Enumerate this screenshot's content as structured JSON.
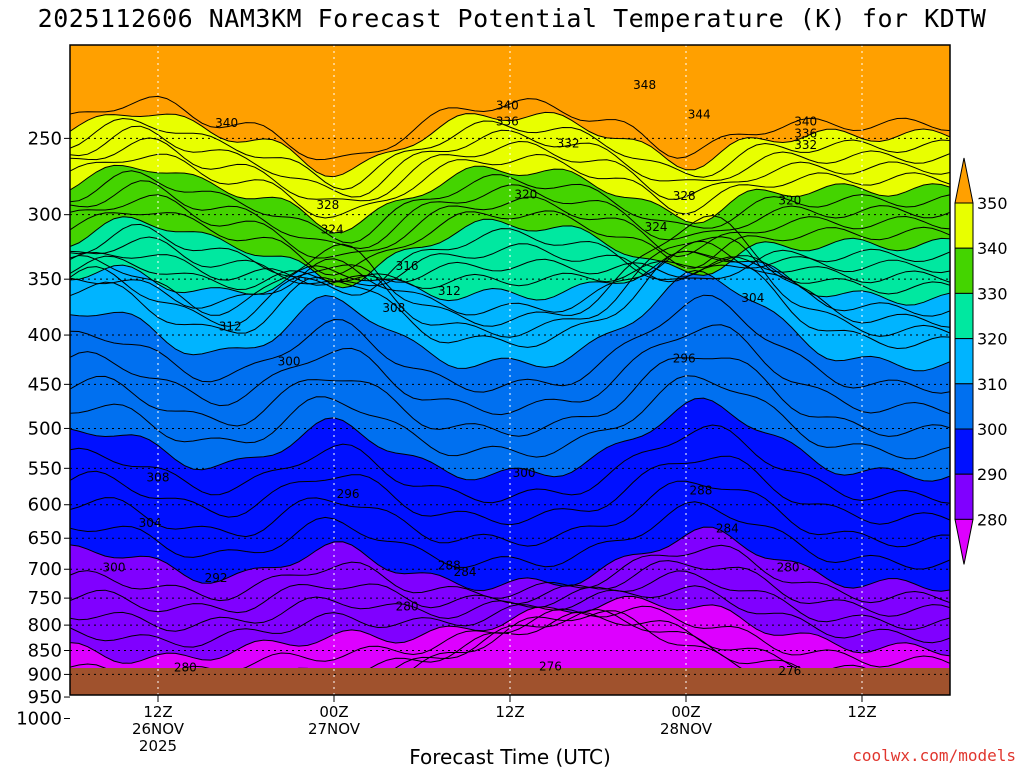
{
  "chart_data": {
    "type": "heatmap",
    "title": "2025112606 NAM3KM Forecast Potential Temperature (K) for KDTW",
    "xlabel": "Forecast Time (UTC)",
    "ylabel": "",
    "y_ticks": [
      "250",
      "300",
      "350",
      "400",
      "450",
      "500",
      "550",
      "600",
      "650",
      "700",
      "750",
      "800",
      "850",
      "900",
      "950",
      "1000"
    ],
    "y_scale": "log-pressure",
    "y_range": [
      1000,
      200
    ],
    "x_ticks": [
      {
        "label": "12Z",
        "date": "26NOV",
        "year": "2025"
      },
      {
        "label": "00Z",
        "date": "27NOV",
        "year": ""
      },
      {
        "label": "12Z",
        "date": "",
        "year": ""
      },
      {
        "label": "00Z",
        "date": "28NOV",
        "year": ""
      },
      {
        "label": "12Z",
        "date": "",
        "year": ""
      }
    ],
    "colorbar": {
      "levels": [
        "280",
        "290",
        "300",
        "310",
        "320",
        "330",
        "340",
        "350"
      ],
      "colors": [
        "#dd00ff",
        "#8000ff",
        "#0010ff",
        "#0070f0",
        "#00b4ff",
        "#00e8a0",
        "#44d400",
        "#e8ff00",
        "#ffa000"
      ]
    },
    "contour_labels": [
      {
        "text": "348",
        "p": 220,
        "t": 0.653
      },
      {
        "text": "340",
        "p": 231,
        "t": 0.497
      },
      {
        "text": "336",
        "p": 240,
        "t": 0.497
      },
      {
        "text": "344",
        "p": 236,
        "t": 0.715
      },
      {
        "text": "340",
        "p": 241,
        "t": 0.178
      },
      {
        "text": "340",
        "p": 240,
        "t": 0.836
      },
      {
        "text": "336",
        "p": 247,
        "t": 0.836
      },
      {
        "text": "332",
        "p": 253,
        "t": 0.566
      },
      {
        "text": "332",
        "p": 254,
        "t": 0.836
      },
      {
        "text": "320",
        "p": 286,
        "t": 0.518
      },
      {
        "text": "328",
        "p": 293,
        "t": 0.293
      },
      {
        "text": "328",
        "p": 287,
        "t": 0.698
      },
      {
        "text": "320",
        "p": 290,
        "t": 0.818
      },
      {
        "text": "324",
        "p": 311,
        "t": 0.298
      },
      {
        "text": "324",
        "p": 309,
        "t": 0.666
      },
      {
        "text": "316",
        "p": 339,
        "t": 0.383
      },
      {
        "text": "312",
        "p": 360,
        "t": 0.431
      },
      {
        "text": "304",
        "p": 366,
        "t": 0.776
      },
      {
        "text": "308",
        "p": 375,
        "t": 0.368
      },
      {
        "text": "312",
        "p": 392,
        "t": 0.182
      },
      {
        "text": "300",
        "p": 426,
        "t": 0.249
      },
      {
        "text": "296",
        "p": 423,
        "t": 0.698
      },
      {
        "text": "308",
        "p": 562,
        "t": 0.1
      },
      {
        "text": "300",
        "p": 556,
        "t": 0.516
      },
      {
        "text": "288",
        "p": 580,
        "t": 0.717
      },
      {
        "text": "296",
        "p": 585,
        "t": 0.316
      },
      {
        "text": "304",
        "p": 627,
        "t": 0.091
      },
      {
        "text": "284",
        "p": 635,
        "t": 0.747
      },
      {
        "text": "288",
        "p": 694,
        "t": 0.431
      },
      {
        "text": "284",
        "p": 705,
        "t": 0.449
      },
      {
        "text": "300",
        "p": 697,
        "t": 0.05
      },
      {
        "text": "280",
        "p": 697,
        "t": 0.816
      },
      {
        "text": "292",
        "p": 715,
        "t": 0.166
      },
      {
        "text": "280",
        "p": 765,
        "t": 0.383
      },
      {
        "text": "276",
        "p": 883,
        "t": 0.546
      },
      {
        "text": "280",
        "p": 885,
        "t": 0.131
      },
      {
        "text": "276",
        "p": 893,
        "t": 0.818
      }
    ]
  },
  "credit": "coolwx.com/models"
}
